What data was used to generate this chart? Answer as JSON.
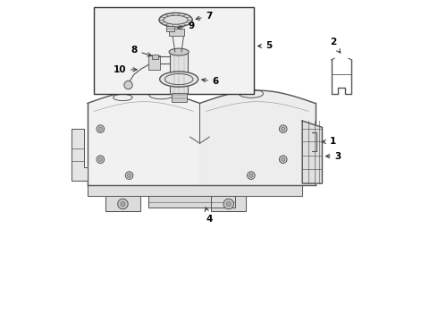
{
  "background_color": "#ffffff",
  "line_color": "#555555",
  "label_color": "#000000"
}
